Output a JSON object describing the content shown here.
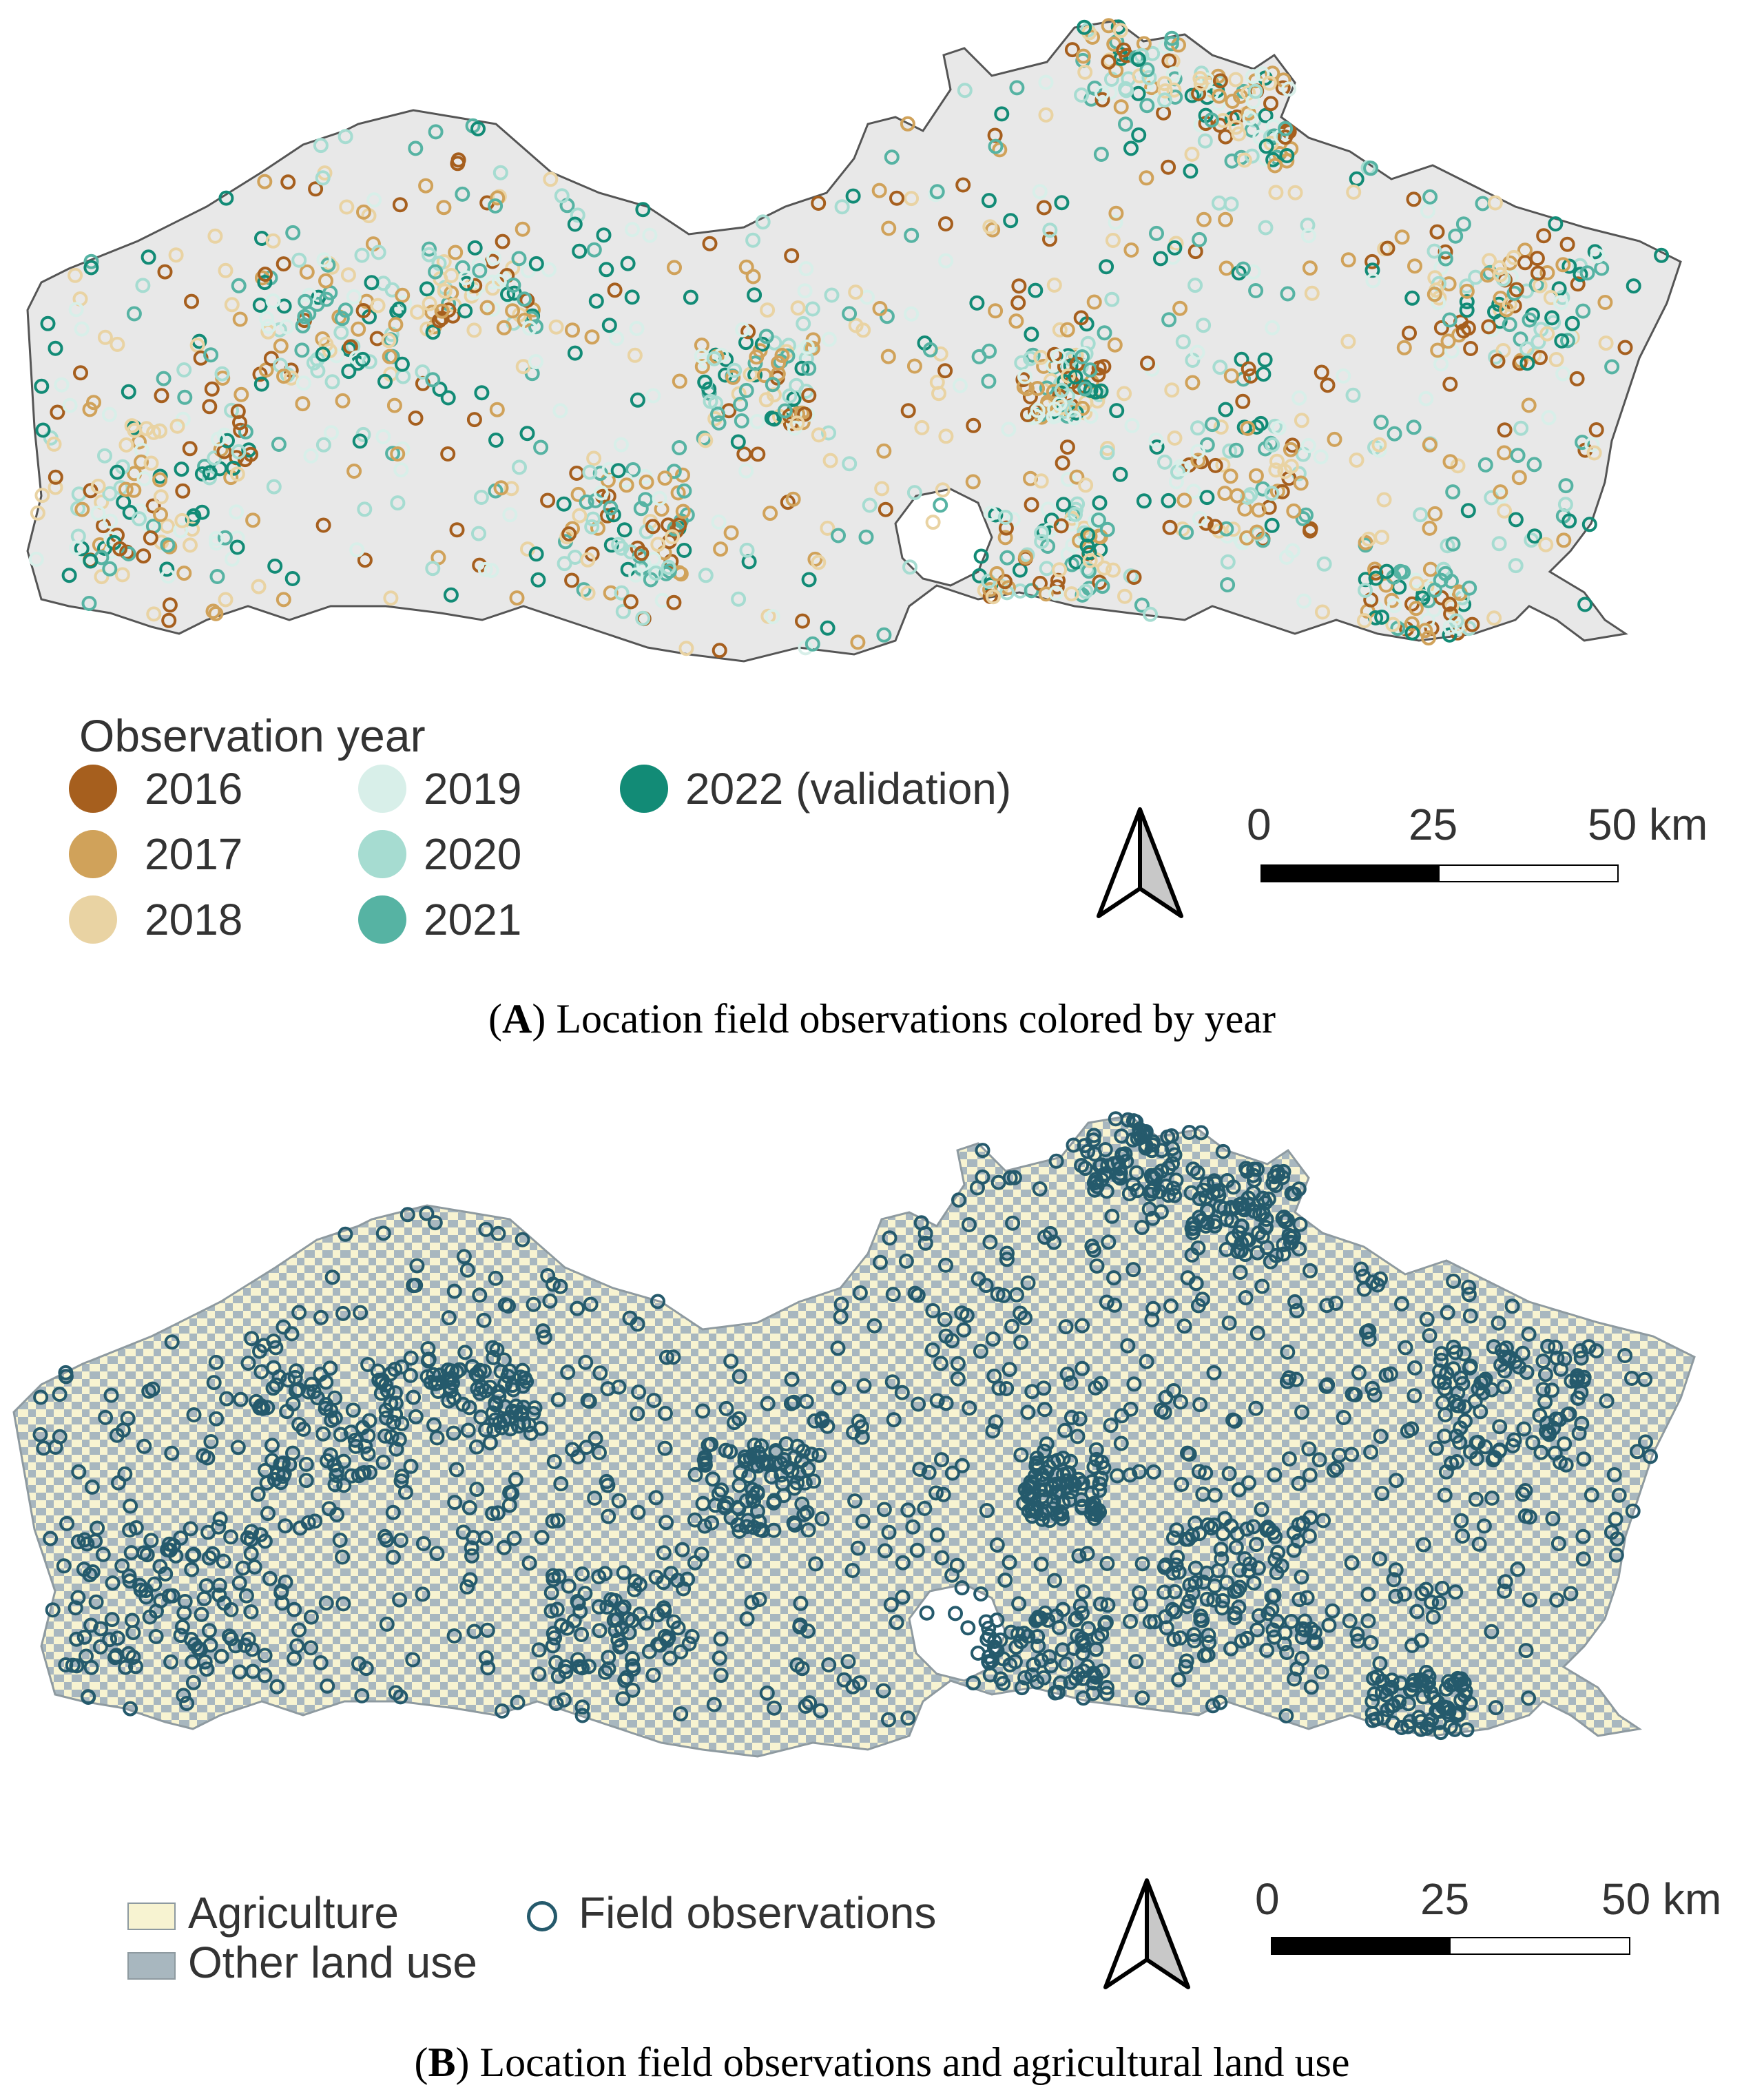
{
  "panel_a": {
    "legend_title": "Observation year",
    "legend": [
      {
        "label": "2016",
        "color": "#a65f1e"
      },
      {
        "label": "2017",
        "color": "#d0a25a"
      },
      {
        "label": "2018",
        "color": "#e9d3a3"
      },
      {
        "label": "2019",
        "color": "#d8efe9"
      },
      {
        "label": "2020",
        "color": "#a6dcd1"
      },
      {
        "label": "2021",
        "color": "#56b3a3"
      },
      {
        "label": "2022 (validation)",
        "color": "#128b76"
      }
    ],
    "scale": {
      "ticks": [
        "0",
        "25",
        "50 km"
      ]
    },
    "north_arrow": "north-arrow-icon",
    "caption_letter": "A",
    "caption_text": ") Location field observations colored by year",
    "caption_open": "(",
    "region_fill": "#e8e8e8",
    "outline": "#555555"
  },
  "panel_b": {
    "legend": {
      "agriculture": {
        "label": "Agriculture",
        "color": "#f7f3d1"
      },
      "other": {
        "label": "Other land use",
        "color": "#a8b7bf"
      },
      "observations": {
        "label": "Field observations",
        "color": "#255a6c"
      }
    },
    "scale": {
      "ticks": [
        "0",
        "25",
        "50 km"
      ]
    },
    "north_arrow": "north-arrow-icon",
    "caption_letter": "B",
    "caption_text": ") Location field observations and agricultural land use",
    "caption_open": "("
  }
}
